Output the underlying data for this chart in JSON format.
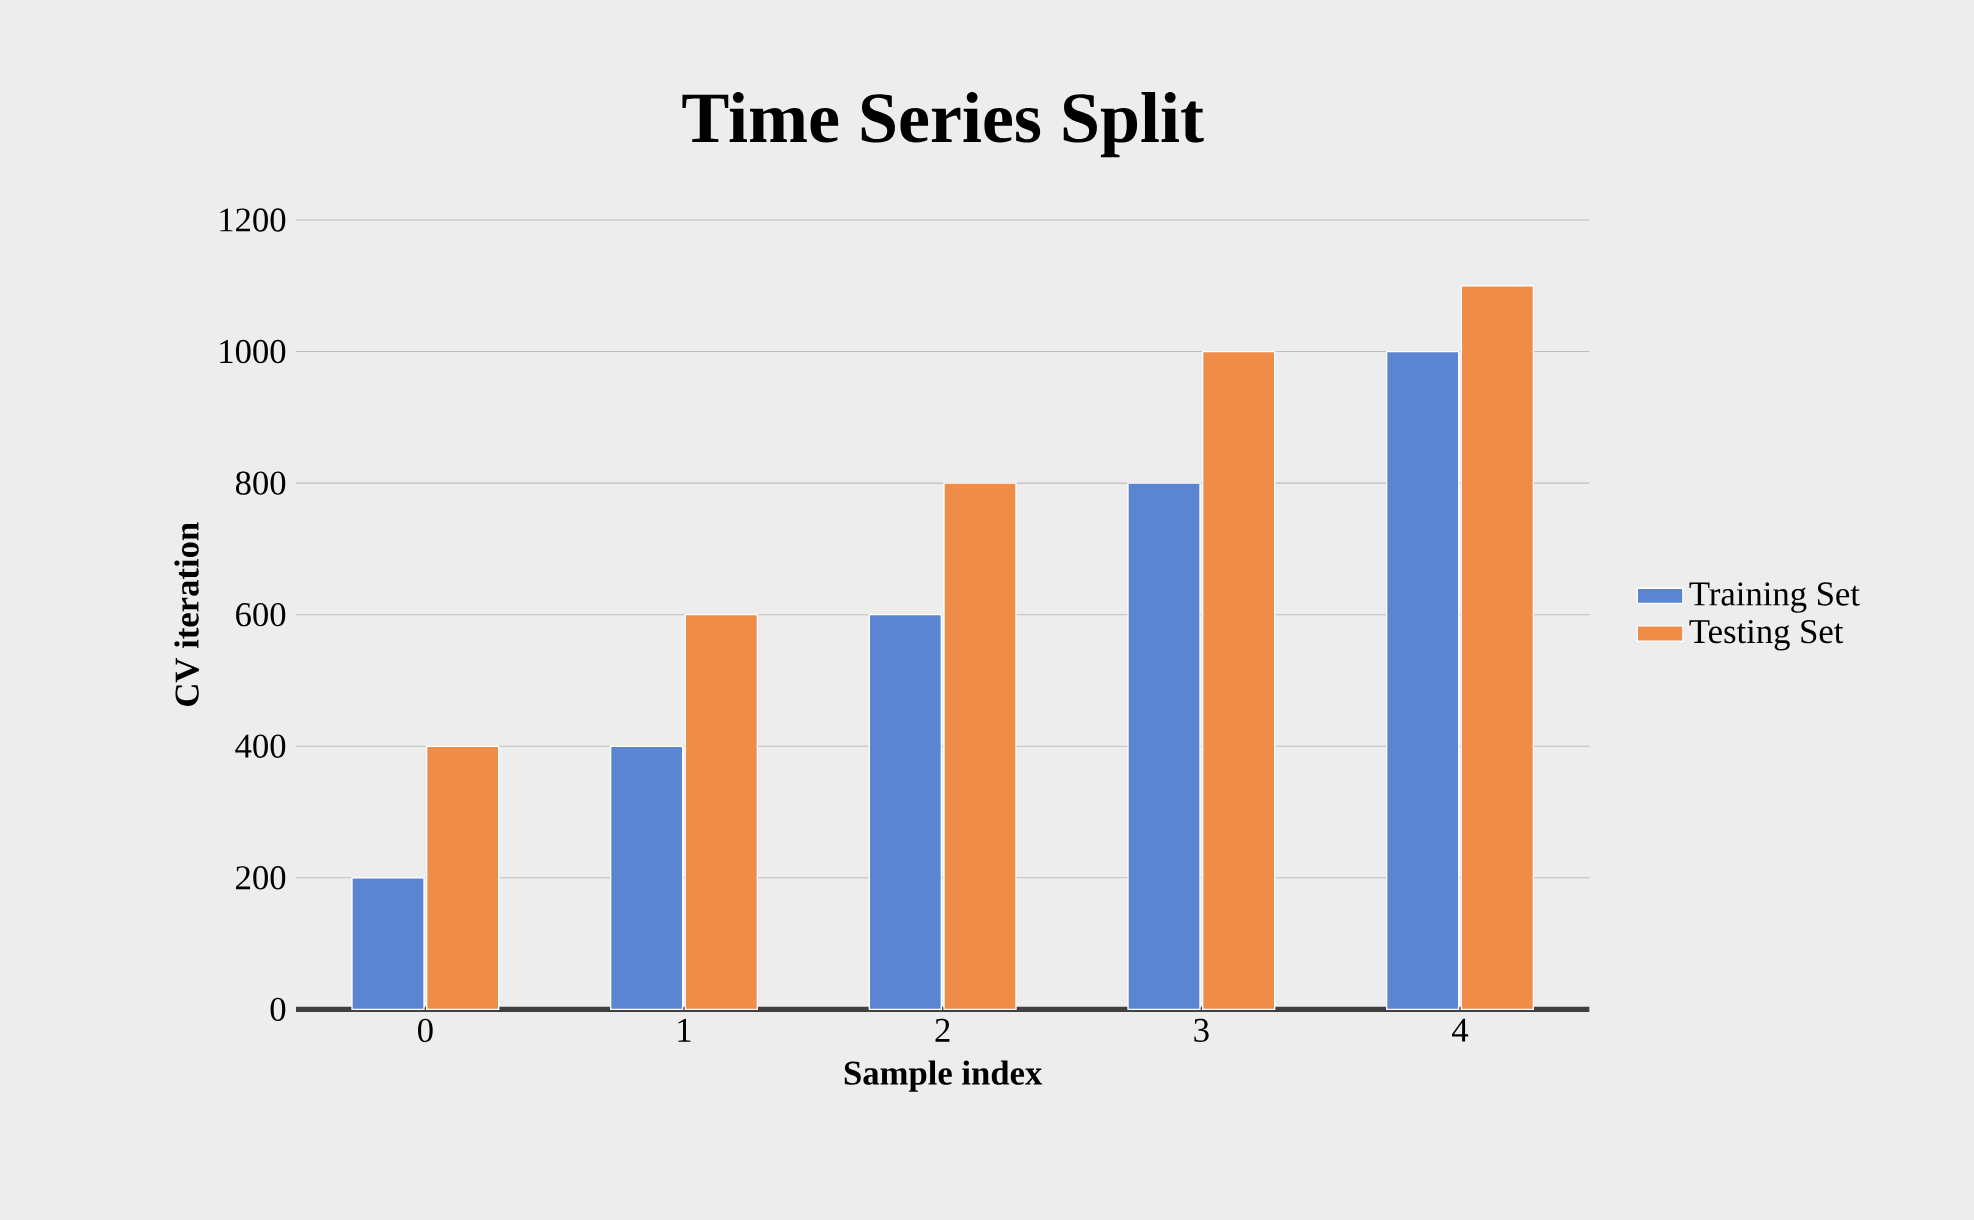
{
  "chart_data": {
    "type": "bar",
    "title": "Time Series Split",
    "xlabel": "Sample index",
    "ylabel": "CV iteration",
    "categories": [
      "0",
      "1",
      "2",
      "3",
      "4"
    ],
    "series": [
      {
        "name": "Training Set",
        "color": "#5b84d1",
        "values": [
          200,
          400,
          600,
          800,
          1000
        ]
      },
      {
        "name": "Testing Set",
        "color": "#ef8c48",
        "values": [
          400,
          600,
          800,
          1000,
          1100
        ]
      }
    ],
    "ylim": [
      0,
      1200
    ],
    "yticks": [
      0,
      200,
      400,
      600,
      800,
      1000,
      1200
    ],
    "grid": "y",
    "legend": "right"
  }
}
